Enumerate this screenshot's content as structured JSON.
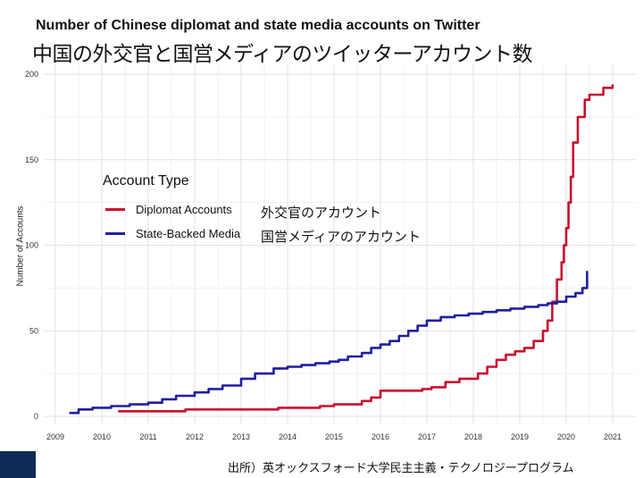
{
  "title_en": "Number of Chinese diplomat and state media accounts on Twitter",
  "title_ja": "中国の外交官と国営メディアのツイッターアカウント数",
  "source": "出所）英オックスフォード大学民主主義・テクノロジープログラム",
  "legend": {
    "title": "Account Type",
    "items": [
      {
        "label": "Diplomat Accounts",
        "ja": "外交官のアカウント",
        "color": "#c8102e"
      },
      {
        "label": "State-Backed Media",
        "ja": "国営メディアのアカウント",
        "color": "#1f1fa0"
      }
    ]
  },
  "chart_data": {
    "type": "line",
    "ylabel": "Number of Accounts",
    "xlabel": "",
    "xlim": [
      2009,
      2021
    ],
    "ylim": [
      0,
      200
    ],
    "x_ticks": [
      "2009",
      "2010",
      "2011",
      "2012",
      "2013",
      "2014",
      "2015",
      "2016",
      "2017",
      "2018",
      "2019",
      "2020",
      "2021"
    ],
    "y_ticks": [
      "0",
      "50",
      "100",
      "150",
      "200"
    ],
    "grid": true,
    "legend_position": "upper-left",
    "series": [
      {
        "name": "Diplomat Accounts",
        "color": "#c8102e",
        "x": [
          2010.35,
          2010.9,
          2011.5,
          2011.8,
          2012.5,
          2013.0,
          2013.6,
          2013.8,
          2014.3,
          2014.7,
          2015.0,
          2015.3,
          2015.6,
          2015.8,
          2016.0,
          2016.3,
          2016.7,
          2016.9,
          2017.1,
          2017.4,
          2017.7,
          2017.9,
          2018.1,
          2018.3,
          2018.5,
          2018.7,
          2018.9,
          2019.1,
          2019.3,
          2019.5,
          2019.6,
          2019.7,
          2019.8,
          2019.9,
          2019.95,
          2020.0,
          2020.05,
          2020.1,
          2020.15,
          2020.25,
          2020.4,
          2020.5,
          2020.8,
          2021.0
        ],
        "y": [
          3,
          3,
          3,
          4,
          4,
          4,
          4,
          5,
          5,
          6,
          7,
          7,
          9,
          11,
          15,
          15,
          15,
          16,
          17,
          20,
          22,
          22,
          25,
          29,
          33,
          36,
          38,
          40,
          44,
          50,
          56,
          67,
          80,
          90,
          100,
          110,
          125,
          140,
          160,
          175,
          185,
          188,
          192,
          194
        ]
      },
      {
        "name": "State-Backed Media",
        "color": "#1f1fa0",
        "x": [
          2009.3,
          2009.5,
          2009.8,
          2010.2,
          2010.6,
          2011.0,
          2011.3,
          2011.6,
          2012.0,
          2012.3,
          2012.6,
          2013.0,
          2013.3,
          2013.7,
          2014.0,
          2014.3,
          2014.6,
          2014.9,
          2015.1,
          2015.3,
          2015.6,
          2015.8,
          2016.0,
          2016.2,
          2016.4,
          2016.6,
          2016.8,
          2017.0,
          2017.3,
          2017.6,
          2017.9,
          2018.2,
          2018.5,
          2018.8,
          2019.1,
          2019.4,
          2019.6,
          2019.8,
          2020.0,
          2020.2,
          2020.35,
          2020.45
        ],
        "y": [
          2,
          4,
          5,
          6,
          7,
          8,
          10,
          12,
          14,
          16,
          18,
          22,
          25,
          28,
          29,
          30,
          31,
          32,
          33,
          35,
          37,
          40,
          42,
          44,
          47,
          50,
          53,
          56,
          58,
          59,
          60,
          61,
          62,
          63,
          64,
          65,
          66,
          67,
          70,
          72,
          75,
          85
        ]
      }
    ]
  }
}
